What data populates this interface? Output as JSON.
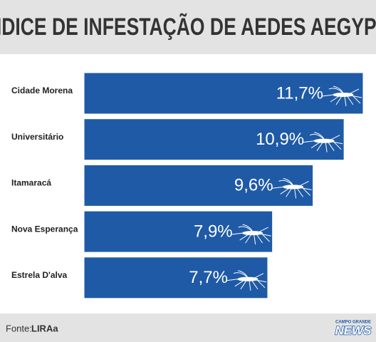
{
  "chart_data": {
    "type": "hbar",
    "title": "ÍNDICE DE INFESTAÇÃO DE AEDES AEGYPTI",
    "categories": [
      "Cidade Morena",
      "Universitário",
      "Itamaracá",
      "Nova Esperança",
      "Estrela D'alva"
    ],
    "values": [
      11.7,
      10.9,
      9.6,
      7.9,
      7.7
    ],
    "value_labels": [
      "11,7%",
      "10,9%",
      "9,6%",
      "7,9%",
      "7,7%"
    ],
    "color": "#1f5aa6",
    "source_label": "Fonte:",
    "source": "LIRAa",
    "logo_top": "CAMPO GRANDE",
    "logo": "NEWS"
  }
}
